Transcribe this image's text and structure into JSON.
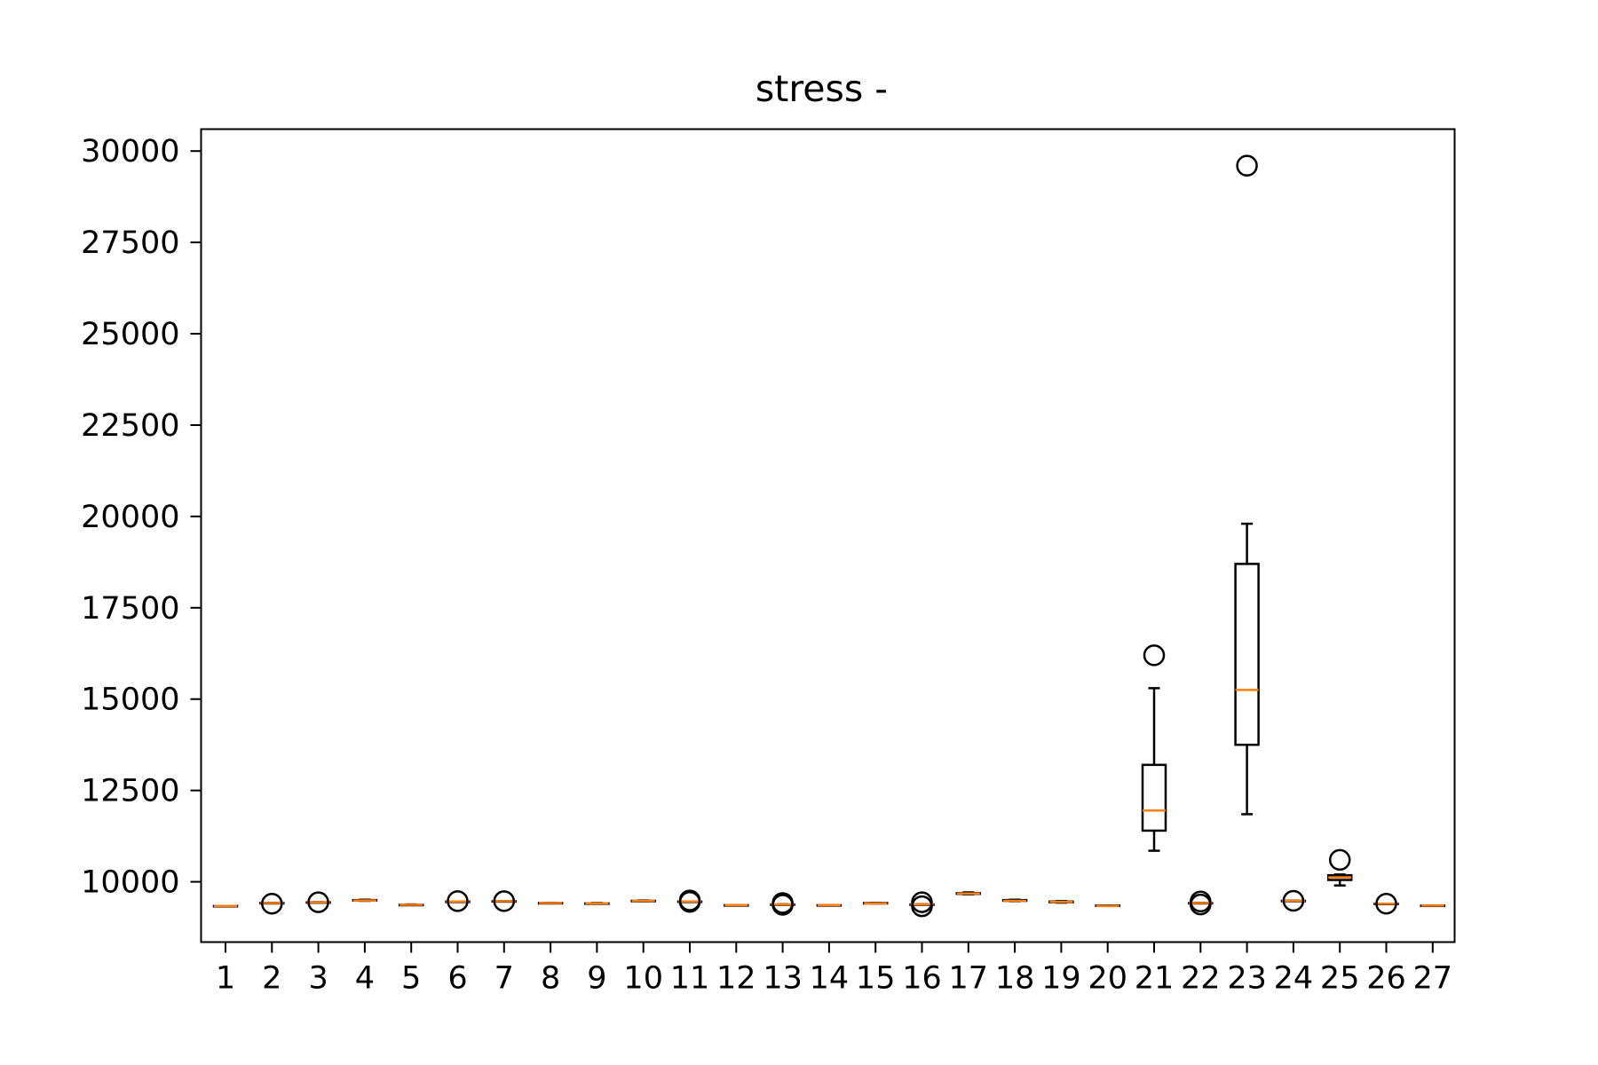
{
  "chart_data": {
    "type": "box",
    "title": "stress -",
    "xlabel": "",
    "ylabel": "",
    "ylim": [
      8350,
      30600
    ],
    "yticks": [
      10000,
      12500,
      15000,
      17500,
      20000,
      22500,
      25000,
      27500,
      30000
    ],
    "ytick_labels": [
      "10000",
      "12500",
      "15000",
      "17500",
      "20000",
      "22500",
      "25000",
      "27500",
      "30000"
    ],
    "categories": [
      "1",
      "2",
      "3",
      "4",
      "5",
      "6",
      "7",
      "8",
      "9",
      "10",
      "11",
      "12",
      "13",
      "14",
      "15",
      "16",
      "17",
      "18",
      "19",
      "20",
      "21",
      "22",
      "23",
      "24",
      "25",
      "26",
      "27"
    ],
    "colors": {
      "box": "#000000",
      "median": "#ff7f0e",
      "flier": "#000000"
    },
    "boxes": [
      {
        "label": "1",
        "whislo": 9340,
        "q1": 9340,
        "med": 9340,
        "q3": 9340,
        "whishi": 9340,
        "fliers": []
      },
      {
        "label": "2",
        "whislo": 9420,
        "q1": 9420,
        "med": 9420,
        "q3": 9420,
        "whishi": 9420,
        "fliers": [
          9400
        ]
      },
      {
        "label": "3",
        "whislo": 9440,
        "q1": 9440,
        "med": 9440,
        "q3": 9440,
        "whishi": 9440,
        "fliers": [
          9440
        ]
      },
      {
        "label": "4",
        "whislo": 9480,
        "q1": 9490,
        "med": 9490,
        "q3": 9500,
        "whishi": 9510,
        "fliers": []
      },
      {
        "label": "5",
        "whislo": 9370,
        "q1": 9370,
        "med": 9370,
        "q3": 9370,
        "whishi": 9380,
        "fliers": []
      },
      {
        "label": "6",
        "whislo": 9460,
        "q1": 9460,
        "med": 9460,
        "q3": 9460,
        "whishi": 9460,
        "fliers": [
          9470
        ]
      },
      {
        "label": "7",
        "whislo": 9470,
        "q1": 9470,
        "med": 9470,
        "q3": 9470,
        "whishi": 9470,
        "fliers": [
          9470
        ]
      },
      {
        "label": "8",
        "whislo": 9420,
        "q1": 9420,
        "med": 9420,
        "q3": 9420,
        "whishi": 9420,
        "fliers": []
      },
      {
        "label": "9",
        "whislo": 9410,
        "q1": 9410,
        "med": 9410,
        "q3": 9410,
        "whishi": 9420,
        "fliers": []
      },
      {
        "label": "10",
        "whislo": 9470,
        "q1": 9480,
        "med": 9480,
        "q3": 9480,
        "whishi": 9490,
        "fliers": []
      },
      {
        "label": "11",
        "whislo": 9460,
        "q1": 9460,
        "med": 9460,
        "q3": 9460,
        "whishi": 9460,
        "fliers": [
          9450,
          9490
        ]
      },
      {
        "label": "12",
        "whislo": 9360,
        "q1": 9360,
        "med": 9360,
        "q3": 9360,
        "whishi": 9360,
        "fliers": []
      },
      {
        "label": "13",
        "whislo": 9380,
        "q1": 9380,
        "med": 9380,
        "q3": 9380,
        "whishi": 9380,
        "fliers": [
          9370,
          9420
        ]
      },
      {
        "label": "14",
        "whislo": 9360,
        "q1": 9360,
        "med": 9360,
        "q3": 9360,
        "whishi": 9360,
        "fliers": []
      },
      {
        "label": "15",
        "whislo": 9410,
        "q1": 9410,
        "med": 9410,
        "q3": 9420,
        "whishi": 9420,
        "fliers": []
      },
      {
        "label": "16",
        "whislo": 9380,
        "q1": 9380,
        "med": 9380,
        "q3": 9380,
        "whishi": 9380,
        "fliers": [
          9330,
          9440
        ]
      },
      {
        "label": "17",
        "whislo": 9660,
        "q1": 9670,
        "med": 9680,
        "q3": 9690,
        "whishi": 9710,
        "fliers": []
      },
      {
        "label": "18",
        "whislo": 9470,
        "q1": 9480,
        "med": 9480,
        "q3": 9500,
        "whishi": 9510,
        "fliers": []
      },
      {
        "label": "19",
        "whislo": 9430,
        "q1": 9440,
        "med": 9450,
        "q3": 9460,
        "whishi": 9470,
        "fliers": []
      },
      {
        "label": "20",
        "whislo": 9340,
        "q1": 9340,
        "med": 9340,
        "q3": 9350,
        "whishi": 9350,
        "fliers": []
      },
      {
        "label": "21",
        "whislo": 10850,
        "q1": 11400,
        "med": 11950,
        "q3": 13200,
        "whishi": 15300,
        "fliers": [
          16200
        ]
      },
      {
        "label": "22",
        "whislo": 9420,
        "q1": 9420,
        "med": 9420,
        "q3": 9420,
        "whishi": 9420,
        "fliers": [
          9380,
          9460
        ]
      },
      {
        "label": "23",
        "whislo": 11850,
        "q1": 13750,
        "med": 15250,
        "q3": 18700,
        "whishi": 19800,
        "fliers": [
          29600
        ]
      },
      {
        "label": "24",
        "whislo": 9480,
        "q1": 9480,
        "med": 9480,
        "q3": 9480,
        "whishi": 9480,
        "fliers": [
          9480
        ]
      },
      {
        "label": "25",
        "whislo": 9900,
        "q1": 10050,
        "med": 10120,
        "q3": 10180,
        "whishi": 10200,
        "fliers": [
          10600
        ]
      },
      {
        "label": "26",
        "whislo": 9400,
        "q1": 9400,
        "med": 9400,
        "q3": 9400,
        "whishi": 9400,
        "fliers": [
          9400
        ]
      },
      {
        "label": "27",
        "whislo": 9350,
        "q1": 9350,
        "med": 9350,
        "q3": 9350,
        "whishi": 9350,
        "fliers": []
      }
    ]
  }
}
